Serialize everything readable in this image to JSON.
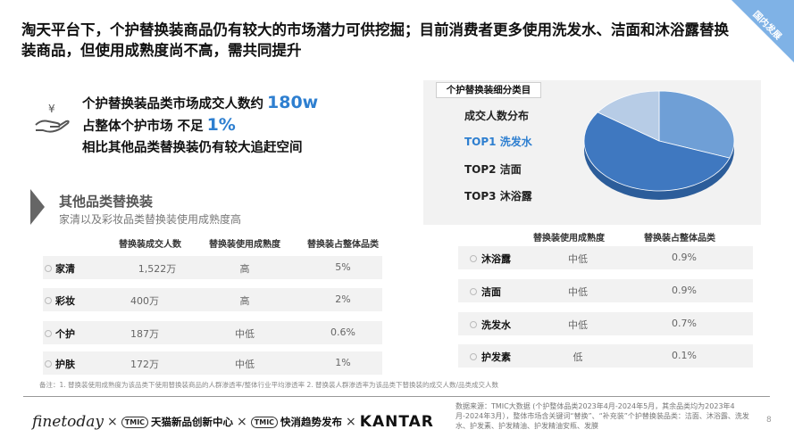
{
  "corner_badge": "国内发展",
  "headline": "淘天平台下，个护替换装商品仍有较大的市场潜力可供挖掘；目前消费者更多使用洗发水、洁面和沐浴露替换装商品，但使用成熟度尚不高，需共同提升",
  "stats": {
    "line1_text": "个护替换装品类市场成交人数约",
    "line1_value": "180w",
    "line2_text": "占整体个护市场 不足",
    "line2_value": "1%",
    "line3_text": "相比其他品类替换装仍有较大追赶空间"
  },
  "other_categories": {
    "title": "其他品类替换装",
    "subtitle": "家清以及彩妆品类替换装使用成熟度高",
    "columns": [
      "替换装成交人数",
      "替换装使用成熟度",
      "替换装占整体品类"
    ],
    "rows": [
      {
        "name": "家清",
        "buyers": "1,522万",
        "maturity": "高",
        "share": "5%"
      },
      {
        "name": "彩妆",
        "buyers": "400万",
        "maturity": "高",
        "share": "2%"
      },
      {
        "name": "个护",
        "buyers": "187万",
        "maturity": "中低",
        "share": "0.6%"
      },
      {
        "name": "护肤",
        "buyers": "172万",
        "maturity": "中低",
        "share": "1%"
      }
    ]
  },
  "footnote": "备注：1. 替换装使用成熟度为该品类下使用替换装商品的人群渗透率/整体行业平均渗透率 2. 替换装人群渗透率为该品类下替换装的成交人数/品类成交人数",
  "subcategory_panel": {
    "tag": "个护替换装细分类目",
    "label": "成交人数分布",
    "top1": "TOP1   洗发水",
    "top2": "TOP2     洁面",
    "top3": "TOP3   沐浴露",
    "colors": [
      "#6f9fd6",
      "#3f78c0",
      "#b7cce6"
    ]
  },
  "subcategory_table": {
    "columns": [
      "替换装使用成熟度",
      "替换装占整体品类"
    ],
    "rows": [
      {
        "name": "沐浴露",
        "maturity": "中低",
        "share": "0.9%"
      },
      {
        "name": "洁面",
        "maturity": "中低",
        "share": "0.9%"
      },
      {
        "name": "洗发水",
        "maturity": "中低",
        "share": "0.7%"
      },
      {
        "name": "护发素",
        "maturity": "低",
        "share": "0.1%"
      }
    ]
  },
  "logos": {
    "finetoday": "finetoday",
    "tmic": "TMIC",
    "tmic_center": "天猫新品创新中心",
    "trend": "快消趋势发布",
    "kantar": "KANTAR",
    "times": "×"
  },
  "source": "数据来源：TMIC大数据 (个护整体品类2023年4月-2024年5月，其余品类均为2023年4月-2024年3月），整体市场含关键词“替换”、“补充装”个护替换装品类：洁面、沐浴露、洗发水、护发素、护发精油、护发精油安瓶、发膜",
  "page_number": "8"
}
